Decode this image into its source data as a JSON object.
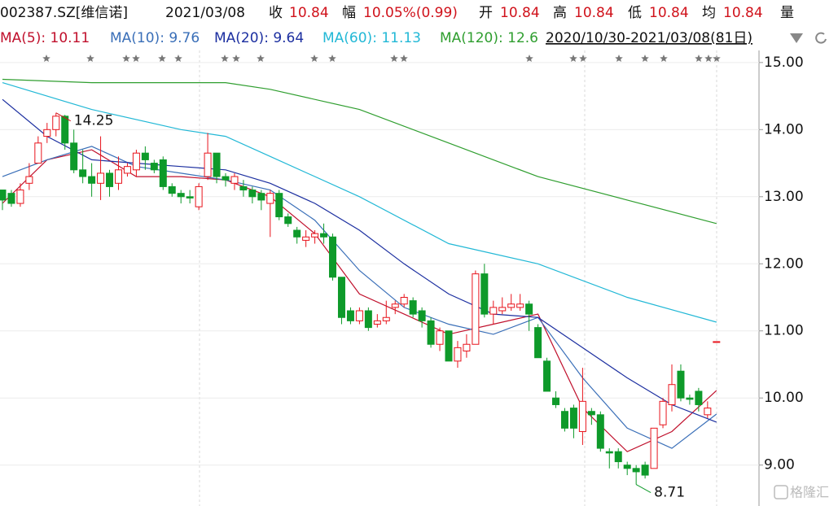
{
  "header": {
    "code": "002387.SZ[维信诺]",
    "date": "2021/03/08",
    "items": [
      {
        "label": "收",
        "value": "10.84"
      },
      {
        "label": "幅",
        "value": "10.05%(0.99)"
      },
      {
        "label": "开",
        "value": "10.84"
      },
      {
        "label": "高",
        "value": "10.84"
      },
      {
        "label": "低",
        "value": "10.84"
      },
      {
        "label": "均",
        "value": "10.84"
      }
    ],
    "extra": "量"
  },
  "chart_data": {
    "type": "candlestick",
    "period": "2020/10/30-2021/03/08(81日)",
    "up_color": "#e8141c",
    "down_color": "#0e9a2a",
    "open": [
      13.1,
      13.05,
      12.9,
      13.2,
      13.5,
      13.9,
      14.0,
      14.2,
      13.8,
      13.4,
      13.3,
      13.2,
      13.35,
      13.2,
      13.35,
      13.4,
      13.65,
      13.5,
      13.55,
      13.15,
      13.05,
      13.0,
      12.85,
      13.3,
      13.65,
      13.3,
      13.2,
      13.15,
      13.1,
      13.05,
      12.9,
      13.05,
      12.7,
      12.5,
      12.35,
      12.4,
      12.45,
      12.4,
      11.8,
      11.3,
      11.15,
      11.3,
      11.1,
      11.15,
      11.35,
      11.4,
      11.45,
      11.3,
      11.15,
      10.8,
      11.0,
      10.55,
      10.7,
      10.8,
      11.85,
      11.25,
      11.3,
      11.35,
      11.35,
      11.4,
      11.05,
      10.55,
      10.0,
      9.8,
      9.85,
      9.5,
      9.8,
      9.75,
      9.2,
      9.2,
      9.0,
      8.95,
      9.0,
      8.95,
      9.6,
      9.9,
      10.4,
      10.0,
      10.1,
      9.75,
      10.84
    ],
    "high": [
      13.1,
      13.1,
      13.2,
      13.5,
      13.9,
      14.1,
      14.25,
      14.22,
      14.0,
      13.7,
      13.5,
      13.9,
      13.4,
      13.6,
      13.5,
      13.7,
      13.75,
      13.55,
      13.6,
      13.2,
      13.1,
      13.1,
      13.2,
      13.95,
      13.65,
      13.35,
      13.35,
      13.25,
      13.15,
      13.1,
      13.1,
      13.1,
      12.75,
      12.55,
      12.5,
      12.5,
      12.6,
      12.45,
      11.8,
      11.35,
      11.35,
      11.35,
      11.25,
      11.45,
      11.45,
      11.55,
      11.5,
      11.35,
      11.2,
      11.05,
      11.0,
      10.85,
      10.95,
      11.9,
      12.0,
      11.45,
      11.5,
      11.55,
      11.55,
      11.45,
      11.1,
      10.6,
      10.1,
      9.85,
      9.9,
      10.45,
      9.85,
      9.8,
      9.25,
      9.25,
      9.05,
      9.0,
      9.05,
      9.55,
      10.0,
      10.5,
      10.5,
      10.05,
      10.15,
      9.95,
      10.84
    ],
    "low": [
      12.8,
      12.85,
      12.85,
      13.1,
      13.5,
      13.8,
      13.9,
      13.7,
      13.35,
      13.2,
      13.0,
      12.95,
      13.0,
      13.1,
      13.3,
      13.3,
      13.4,
      13.35,
      13.1,
      13.0,
      12.9,
      12.9,
      12.8,
      13.25,
      13.2,
      13.15,
      13.1,
      13.0,
      12.9,
      12.8,
      12.4,
      12.65,
      12.55,
      12.3,
      12.25,
      12.3,
      12.3,
      11.75,
      11.1,
      11.1,
      11.1,
      11.0,
      11.05,
      11.1,
      11.25,
      11.35,
      11.2,
      11.05,
      10.75,
      10.7,
      10.55,
      10.45,
      10.6,
      10.8,
      11.2,
      11.1,
      11.25,
      11.3,
      11.3,
      11.0,
      10.6,
      10.1,
      9.85,
      9.5,
      9.4,
      9.3,
      9.6,
      9.2,
      8.95,
      8.95,
      8.85,
      8.71,
      8.8,
      8.95,
      9.55,
      9.8,
      9.95,
      9.9,
      9.8,
      9.7,
      10.84
    ],
    "close": [
      12.95,
      12.9,
      13.1,
      13.3,
      13.8,
      14.0,
      14.2,
      13.8,
      13.4,
      13.3,
      13.2,
      13.35,
      13.15,
      13.4,
      13.45,
      13.65,
      13.55,
      13.4,
      13.15,
      13.05,
      13.0,
      12.98,
      13.15,
      13.65,
      13.3,
      13.25,
      13.3,
      13.1,
      13.0,
      12.95,
      13.05,
      12.7,
      12.6,
      12.4,
      12.4,
      12.45,
      12.4,
      11.8,
      11.2,
      11.15,
      11.3,
      11.05,
      11.15,
      11.2,
      11.4,
      11.5,
      11.25,
      11.15,
      10.8,
      11.0,
      10.55,
      10.75,
      10.8,
      11.85,
      11.25,
      11.35,
      11.35,
      11.4,
      11.4,
      11.25,
      10.6,
      10.1,
      9.9,
      9.55,
      9.55,
      9.95,
      9.75,
      9.25,
      9.18,
      9.05,
      8.95,
      8.9,
      8.85,
      9.55,
      9.95,
      10.2,
      10.0,
      9.98,
      9.9,
      9.85,
      10.84
    ],
    "ma": [
      {
        "name": "MA(5): 10.11",
        "color": "#c0102c",
        "x": [
          0,
          5,
          10,
          15,
          20,
          25,
          30,
          35,
          40,
          45,
          50,
          55,
          60,
          65,
          70,
          75,
          80
        ],
        "values": [
          12.9,
          13.55,
          13.7,
          13.3,
          13.3,
          13.25,
          13.0,
          12.45,
          11.55,
          11.25,
          10.95,
          11.1,
          11.25,
          9.85,
          9.2,
          9.5,
          10.11
        ]
      },
      {
        "name": "MA(10): 9.76",
        "color": "#3a6fb8",
        "x": [
          0,
          5,
          10,
          15,
          20,
          25,
          30,
          35,
          40,
          45,
          50,
          55,
          60,
          65,
          70,
          75,
          80
        ],
        "values": [
          13.3,
          13.55,
          13.75,
          13.45,
          13.35,
          13.25,
          13.1,
          12.65,
          11.9,
          11.35,
          11.1,
          10.95,
          11.2,
          10.3,
          9.55,
          9.25,
          9.76
        ]
      },
      {
        "name": "MA(20): 9.64",
        "color": "#1c2fa0",
        "x": [
          0,
          5,
          10,
          15,
          20,
          25,
          30,
          35,
          40,
          45,
          50,
          55,
          60,
          65,
          70,
          75,
          80
        ],
        "values": [
          14.45,
          13.9,
          13.55,
          13.5,
          13.45,
          13.4,
          13.2,
          12.9,
          12.5,
          12.0,
          11.55,
          11.25,
          11.2,
          10.75,
          10.3,
          9.9,
          9.64
        ]
      },
      {
        "name": "MA(60): 11.13",
        "color": "#22b8d6",
        "x": [
          0,
          10,
          20,
          25,
          30,
          40,
          50,
          60,
          70,
          80
        ],
        "values": [
          14.7,
          14.3,
          14.0,
          13.9,
          13.6,
          13.0,
          12.3,
          12.0,
          11.5,
          11.13
        ]
      },
      {
        "name": "MA(120): 12.6",
        "color": "#2f9e2f",
        "x": [
          0,
          10,
          20,
          25,
          30,
          40,
          50,
          60,
          70,
          80
        ],
        "values": [
          14.75,
          14.7,
          14.7,
          14.7,
          14.6,
          14.3,
          13.8,
          13.3,
          12.95,
          12.6
        ]
      }
    ],
    "max_label": 14.25,
    "min_label": 8.71,
    "ylim": [
      8.39,
      15.18
    ],
    "yticks": [
      {
        "value": 9,
        "label": "9.00"
      },
      {
        "value": 10,
        "label": "10.00"
      },
      {
        "value": 11,
        "label": "11.00"
      },
      {
        "value": 12,
        "label": "12.00"
      },
      {
        "value": 13,
        "label": "13.00"
      },
      {
        "value": 14,
        "label": "14.00"
      },
      {
        "value": 15,
        "label": "15.00"
      }
    ],
    "grid": true,
    "watermark": "格隆汇"
  }
}
